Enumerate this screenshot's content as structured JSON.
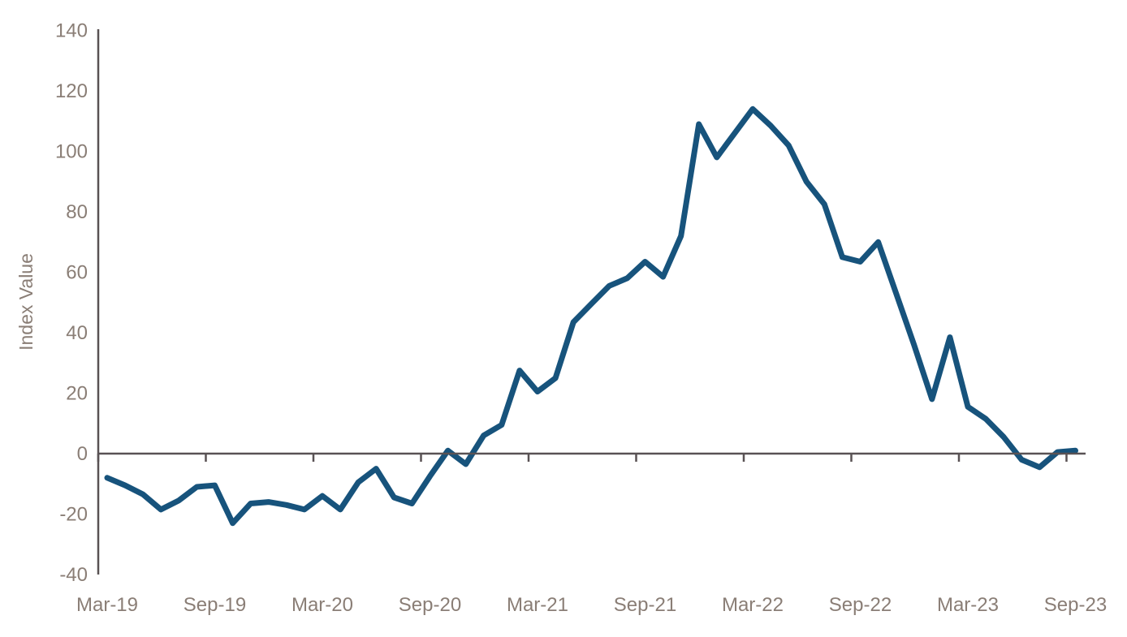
{
  "chart_data": {
    "type": "line",
    "title": "",
    "xlabel": "",
    "ylabel": "Index Value",
    "grid": false,
    "legend": "none",
    "ylim": [
      -40,
      140
    ],
    "y_ticks": [
      140,
      120,
      100,
      80,
      60,
      40,
      20,
      0,
      -20,
      -40
    ],
    "x_tick_labels": [
      "Mar-19",
      "Sep-19",
      "Mar-20",
      "Sep-20",
      "Mar-21",
      "Sep-21",
      "Mar-22",
      "Sep-22",
      "Mar-23",
      "Sep-23"
    ],
    "x": [
      "Mar-19",
      "Apr-19",
      "May-19",
      "Jun-19",
      "Jul-19",
      "Aug-19",
      "Sep-19",
      "Oct-19",
      "Nov-19",
      "Dec-19",
      "Jan-20",
      "Feb-20",
      "Mar-20",
      "Apr-20",
      "May-20",
      "Jun-20",
      "Jul-20",
      "Aug-20",
      "Sep-20",
      "Oct-20",
      "Nov-20",
      "Dec-20",
      "Jan-21",
      "Feb-21",
      "Mar-21",
      "Apr-21",
      "May-21",
      "Jun-21",
      "Jul-21",
      "Aug-21",
      "Sep-21",
      "Oct-21",
      "Nov-21",
      "Dec-21",
      "Jan-22",
      "Feb-22",
      "Mar-22",
      "Apr-22",
      "May-22",
      "Jun-22",
      "Jul-22",
      "Aug-22",
      "Sep-22",
      "Oct-22",
      "Nov-22",
      "Dec-22",
      "Jan-23",
      "Feb-23",
      "Mar-23",
      "Apr-23",
      "May-23",
      "Jun-23",
      "Jul-23",
      "Aug-23",
      "Sep-23"
    ],
    "series": [
      {
        "name": "Index Value",
        "values": [
          -8,
          -10.5,
          -13.5,
          -18.5,
          -15.5,
          -11,
          -10.5,
          -23,
          -16.5,
          -16,
          -17,
          -18.5,
          -14,
          -18.5,
          -9.5,
          -5,
          -14.5,
          -16.5,
          -7.5,
          1,
          -3.5,
          6,
          9.5,
          27.5,
          20.5,
          25,
          43.5,
          49.5,
          55.5,
          58,
          63.5,
          58.5,
          72,
          109,
          98,
          106,
          114,
          108.5,
          102,
          90,
          82.5,
          65,
          63.5,
          70,
          53,
          36,
          18,
          38.5,
          15.5,
          11.5,
          5.5,
          -2,
          -4.5,
          0.5,
          1
        ]
      }
    ],
    "colors": {
      "line": "#17537C",
      "axis": "#595254",
      "tick_text": "#8A7E76",
      "background": "#FFFFFF"
    }
  }
}
